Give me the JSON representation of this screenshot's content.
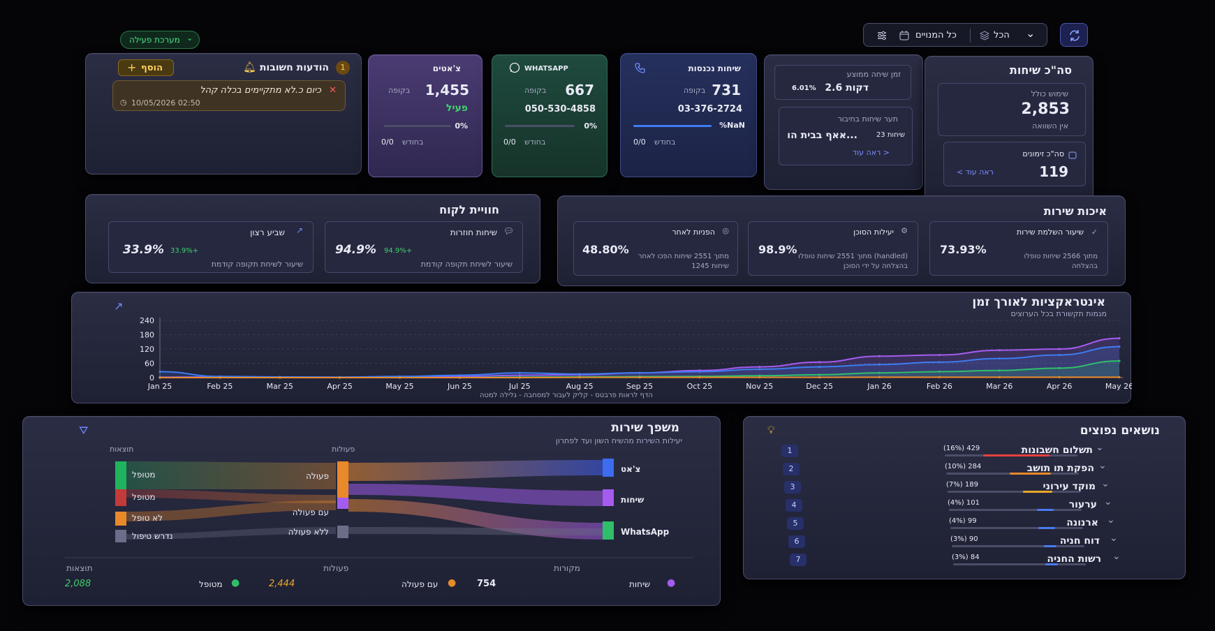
{
  "top": {
    "system_status": "מערכת פעילה",
    "filter_all": "הכל",
    "filter_subscribers": "כל המנויים"
  },
  "notifications": {
    "title": "הודעות חשובות",
    "count": "1",
    "add": "הוסף",
    "message": "כיום כ.לא מתקיימים בכלה קהל",
    "timestamp": "10/05/2026 02:50"
  },
  "chats": {
    "title": "צ'אטים",
    "value": "1,455",
    "period": "בקופה",
    "status": "פעיל",
    "pct": "0%",
    "monthly": "0/0",
    "monthly_label": "בחודש",
    "progress": 0
  },
  "whatsapp": {
    "title": "WHATSAPP",
    "value": "667",
    "period": "בקופה",
    "phone": "050-530-4858",
    "pct": "0%",
    "monthly": "0/0",
    "monthly_label": "בחודש",
    "progress": 0
  },
  "incoming": {
    "title": "שיחות נכנסות",
    "value": "731",
    "period": "בקופה",
    "phone": "03-376-2724",
    "pct": "%NaN",
    "monthly": "0/0",
    "monthly_label": "בחודש",
    "progress": 1
  },
  "avgtime": {
    "title": "זמן שיחה ממוצע",
    "value": "2.6 דקות",
    "change": "6.01%",
    "topic_title": "תער שיחות בחיבור",
    "topic_text": "אאף בבית הו...",
    "topic_count": "23 שיחות",
    "more": "ראה עוד >"
  },
  "total": {
    "title": "סה\"כ שיחות",
    "usage_label": "שימוש כולל",
    "usage_value": "2,853",
    "usage_sub": "אין השוואה",
    "orders_label": "סה\"כ זימונים",
    "orders_value": "119",
    "more": "< ראה עוד"
  },
  "cx": {
    "title": "חוויית לקוח",
    "satisfaction": {
      "label": "שביע רצון",
      "value": "33.9%",
      "delta": "33.9%+",
      "sub": "שיעור לשיחת תקופה קודמת"
    },
    "returning": {
      "label": "שיחות חוזרות",
      "value": "94.9%",
      "delta": "94.9%+",
      "sub": "שיעור לשיחת תקופה קודמת"
    }
  },
  "quality": {
    "title": "איכות שירות",
    "referrals": {
      "label": "הפניות לאחר",
      "value": "48.80%",
      "sub1": "מתוך 2551 שיחות הפכו לאחר",
      "sub2": "1245 שיחות"
    },
    "agent": {
      "label": "יעילות הסוכן",
      "value": "98.9%",
      "sub1": "מתוך 2551 שיחות טופלו (handled)",
      "sub2": "בהצלחה על ידי הסוכן"
    },
    "completion": {
      "label": "שיעור השלמת שירות",
      "value": "73.93%",
      "sub1": "מתוך 2566 שיחות טופלו",
      "sub2": "בהצלחה"
    }
  },
  "timeline": {
    "title": "אינטראקציות לאורך זמן",
    "subtitle": "מגמות תקשורת בכל הערוצים",
    "hint": "הדף לראות פרבטס - קליק לעבור למסחבה - גלילה למטה"
  },
  "chart_data": {
    "type": "area",
    "x": [
      "Jan 25",
      "Feb 25",
      "Mar 25",
      "Apr 25",
      "May 25",
      "Jun 25",
      "Jul 25",
      "Aug 25",
      "Sep 25",
      "Oct 25",
      "Nov 25",
      "Dec 25",
      "Jan 26",
      "Feb 26",
      "Mar 26",
      "Apr 26",
      "May 26"
    ],
    "yticks": [
      0,
      60,
      120,
      180,
      240
    ],
    "ylim": [
      0,
      240
    ],
    "series": [
      {
        "color": "#a45cf0",
        "values": [
          2,
          3,
          2,
          2,
          3,
          5,
          10,
          12,
          20,
          30,
          45,
          65,
          90,
          95,
          115,
          120,
          165
        ]
      },
      {
        "color": "#3d7cf0",
        "values": [
          25,
          5,
          3,
          2,
          5,
          10,
          20,
          15,
          20,
          25,
          35,
          45,
          55,
          65,
          80,
          95,
          130
        ]
      },
      {
        "color": "#2fbf6a",
        "values": [
          0,
          0,
          0,
          0,
          0,
          0,
          2,
          3,
          4,
          5,
          8,
          12,
          20,
          25,
          30,
          40,
          70
        ]
      },
      {
        "color": "#e8892a",
        "values": [
          0,
          0,
          0,
          0,
          0,
          0,
          0,
          1,
          1,
          1,
          1,
          1,
          2,
          2,
          2,
          2,
          2
        ]
      }
    ]
  },
  "funnel": {
    "title": "משפך שירות",
    "subtitle": "יעילות השירות מהשיח השון ועד לפתרון",
    "col_results": "תוצאות",
    "col_actions": "פעולות",
    "left_nodes": [
      "מטופל",
      "מטופל",
      "לא טופל",
      "נדרש טיפול"
    ],
    "mid_nodes": [
      "פעולה",
      "עם פעולה",
      "ללא פעולה"
    ],
    "right_nodes": [
      "צ'אט",
      "שיחות",
      "WhatsApp"
    ],
    "footer": {
      "results_label": "תוצאות",
      "actions_label": "פעולות",
      "sources_label": "מקורות",
      "results_value": "2,088",
      "handled_label": "מטופל",
      "actions_value": "2,444",
      "with_action_label": "עם פעולה",
      "sources_value": "754",
      "calls_label": "שיחות"
    }
  },
  "topics": {
    "title": "נושאים נפוצים",
    "items": [
      {
        "rank": "1",
        "name": "תשלום חשבונות",
        "stat": "(16%) 429",
        "pct": 16,
        "color": "#e8413c"
      },
      {
        "rank": "2",
        "name": "הפקת תו תושב",
        "stat": "(10%) 284",
        "pct": 10,
        "color": "#e8892a"
      },
      {
        "rank": "3",
        "name": "מוקד עירוני",
        "stat": "(7%) 189",
        "pct": 7,
        "color": "#e8a82a"
      },
      {
        "rank": "4",
        "name": "ערעור",
        "stat": "(4%) 101",
        "pct": 4,
        "color": "#4a7bf0"
      },
      {
        "rank": "5",
        "name": "ארנונה",
        "stat": "(4%) 99",
        "pct": 4,
        "color": "#4a7bf0"
      },
      {
        "rank": "6",
        "name": "דוח חניה",
        "stat": "(3%) 90",
        "pct": 3,
        "color": "#4a7bf0"
      },
      {
        "rank": "7",
        "name": "רשות החניה",
        "stat": "(3%) 84",
        "pct": 3,
        "color": "#4a7bf0"
      }
    ]
  }
}
